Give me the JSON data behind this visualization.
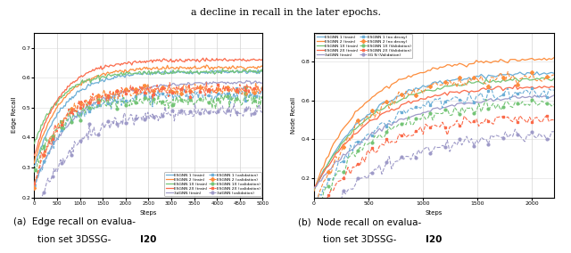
{
  "fig_width": 6.4,
  "fig_height": 2.84,
  "dpi": 100,
  "top_text": "a decline in recall in the later epochs.",
  "colors": [
    "#6baed6",
    "#fd8d3c",
    "#74c476",
    "#fb6a4a",
    "#9e9ac8"
  ],
  "markers_val": [
    "s",
    "D",
    "o",
    "s",
    "o"
  ],
  "subplot_a": {
    "xlabel": "Steps",
    "ylabel": "Edge Recall",
    "xlim": [
      0,
      5000
    ],
    "ylim": [
      0.2,
      0.75
    ],
    "yticks": [
      0.2,
      0.3,
      0.4,
      0.5,
      0.6,
      0.7
    ],
    "ytick_labels": [
      "0.2",
      "0.3",
      "0.4",
      "0.5",
      "0.6",
      "0.7"
    ],
    "xticks": [
      0,
      500,
      1000,
      1500,
      2000,
      2500,
      3000,
      3500,
      4000,
      4500,
      5000
    ],
    "xtick_labels": [
      "0",
      "500",
      "1000",
      "1500",
      "2000",
      "2500",
      "3000",
      "3500",
      "4000",
      "4500",
      "5000"
    ]
  },
  "subplot_b": {
    "xlabel": "Steps",
    "ylabel": "Node Recall",
    "xlim": [
      0,
      2200
    ],
    "ylim": [
      0.1,
      0.95
    ],
    "yticks": [
      0.2,
      0.4,
      0.6,
      0.8
    ],
    "ytick_labels": [
      "0.2",
      "0.4",
      "0.6",
      "0.8"
    ],
    "xticks": [
      0,
      500,
      1000,
      1500,
      2000
    ],
    "xtick_labels": [
      "0",
      "500",
      "1000",
      "1500",
      "2000"
    ]
  },
  "legend_a": {
    "labels_train": [
      "ESGNN 1 (train)",
      "ESGNN 2 (train)",
      "ESGNN 1X (train)",
      "ESGNN 2X (train)",
      "3dGNN (train)"
    ],
    "labels_val": [
      "ESGNN 1 (validation)",
      "ESGNN 2 (validation)",
      "ESGNN 1X (validation)",
      "ESGNN 2X (validation)",
      "3dGNN (validation)"
    ]
  },
  "legend_b": {
    "labels_train": [
      "ESGNN 1 (train)",
      "ESGNN 2 (train)",
      "ESGNN 1X (train)",
      "ESGNN 2X (train)",
      "3dGNN (train)"
    ],
    "labels_val": [
      "ESGNN 1 (no decay)",
      "ESGNN 2 (no decay)",
      "ESGNN 1X (Validation)",
      "ESGNN 2X (Validation)",
      "3G N (Validation)"
    ]
  },
  "caption_a": "(a) Edge recall on evalua-\ntion set 3DSSG-",
  "caption_b": "(b) Node recall on evalua-\ntion set 3DSSG-",
  "caption_bold": "I20"
}
